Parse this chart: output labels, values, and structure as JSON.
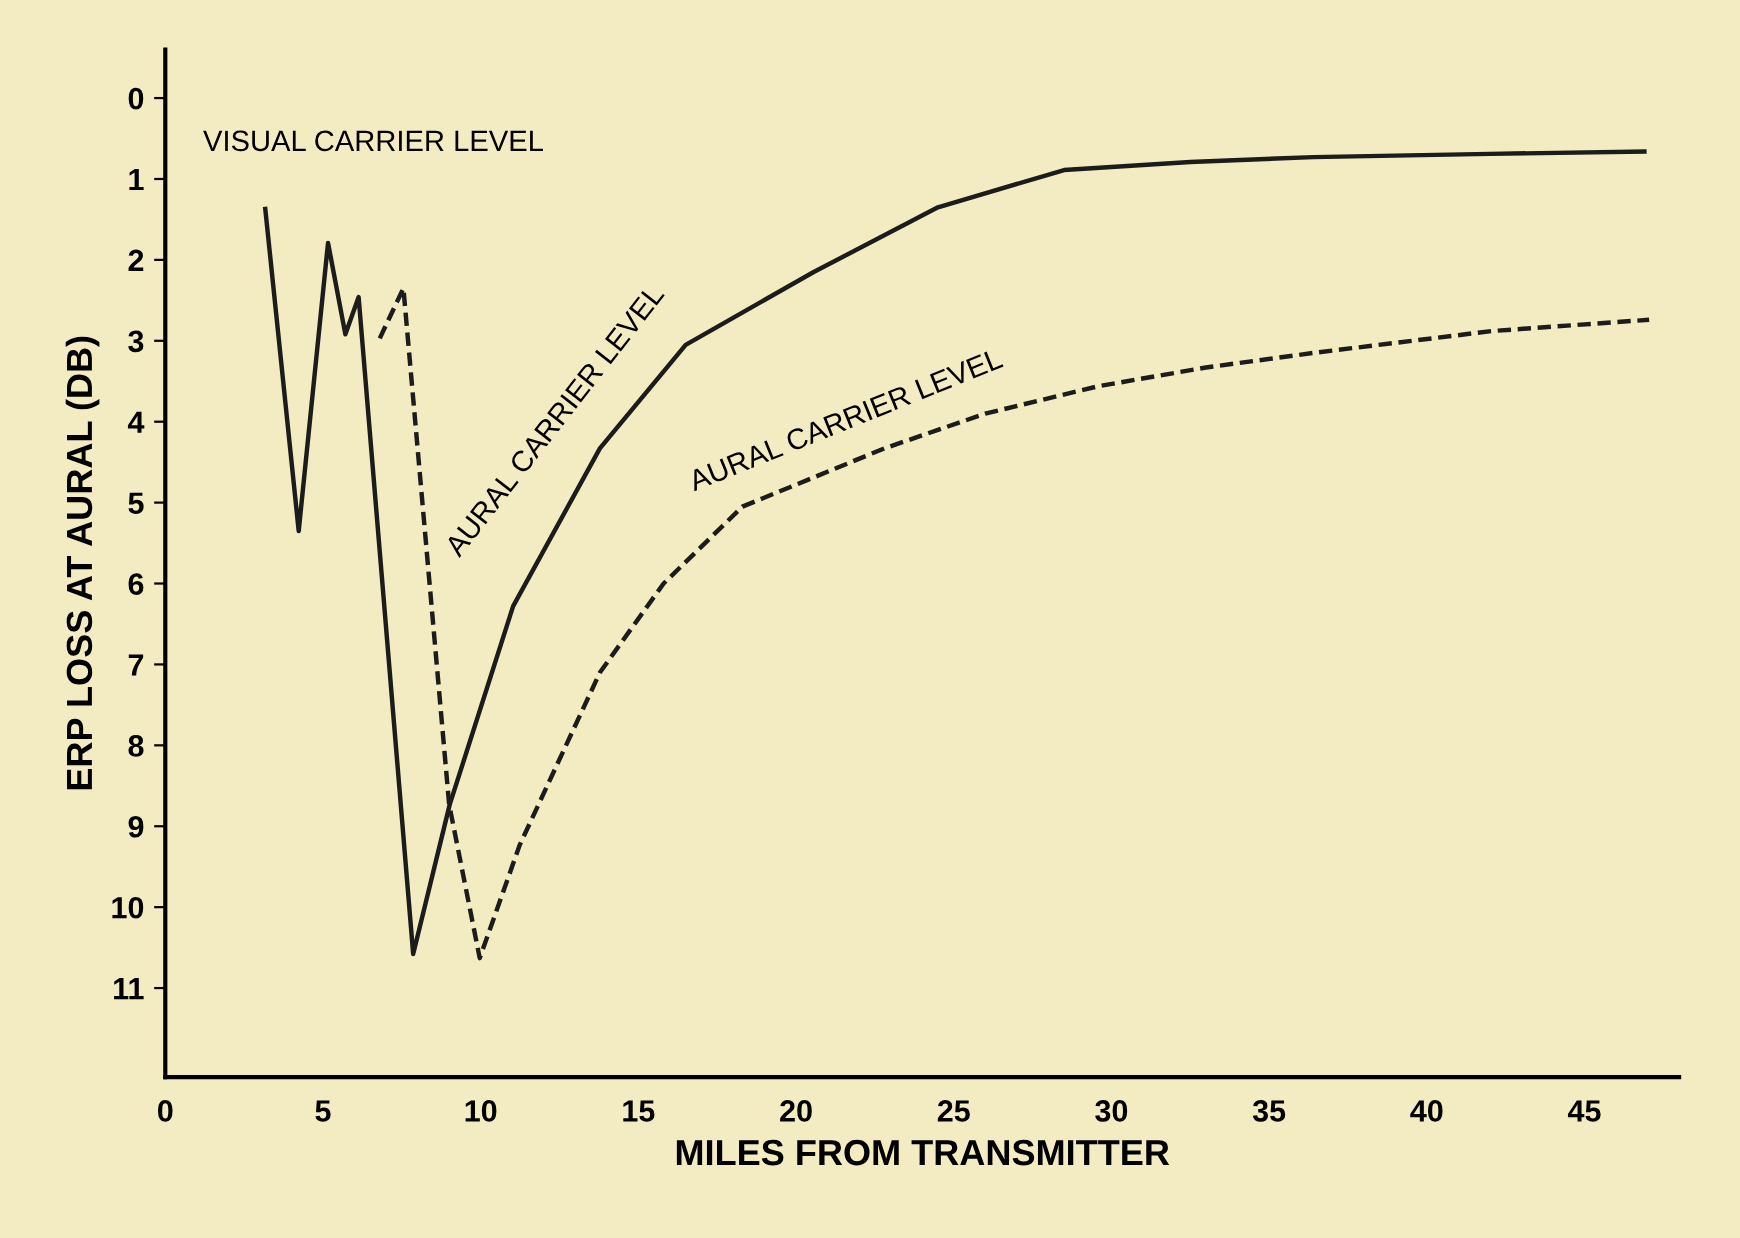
{
  "chart_data": {
    "type": "line",
    "xlabel": "MILES FROM TRANSMITTER",
    "ylabel": "ERP LOSS AT AURAL (DB)",
    "xlim": [
      0,
      48
    ],
    "xticks": [
      0,
      5,
      10,
      15,
      20,
      25,
      30,
      35,
      40,
      45
    ],
    "ylim": [
      12.1,
      -0.6
    ],
    "yticks": [
      0,
      1,
      2,
      3,
      4,
      5,
      6,
      7,
      8,
      9,
      10,
      11
    ],
    "grid": false,
    "legend": false,
    "marker": "none",
    "series": [
      {
        "color": "#1c1c1c",
        "line_style": "solid",
        "x": [
          3.17,
          4.23,
          5.16,
          5.71,
          6.13,
          7.86,
          9.02,
          11.03,
          13.78,
          16.5,
          20.56,
          24.5,
          28.5,
          32.5,
          36.4,
          42,
          46.9
        ],
        "values": [
          1.37,
          5.35,
          1.79,
          2.92,
          2.46,
          10.58,
          8.73,
          6.28,
          4.33,
          3.05,
          2.15,
          1.35,
          0.89,
          0.79,
          0.73,
          0.69,
          0.66
        ]
      },
      {
        "color": "#1c1c1c",
        "line_style": "dashed",
        "x": [
          6.8,
          7.55,
          9.0,
          9.97,
          11.24,
          13.78,
          15.8,
          18.3,
          22.8,
          26,
          29.6,
          33,
          36.4,
          42.05,
          47.05
        ],
        "values": [
          2.97,
          2.35,
          8.73,
          10.63,
          9.23,
          7.1,
          6.0,
          5.05,
          4.33,
          3.9,
          3.56,
          3.33,
          3.15,
          2.88,
          2.74
        ]
      }
    ],
    "annotations": [
      "VISUAL CARRIER LEVEL",
      "AURAL CARRIER LEVEL",
      "AURAL CARRIER LEVEL"
    ]
  }
}
